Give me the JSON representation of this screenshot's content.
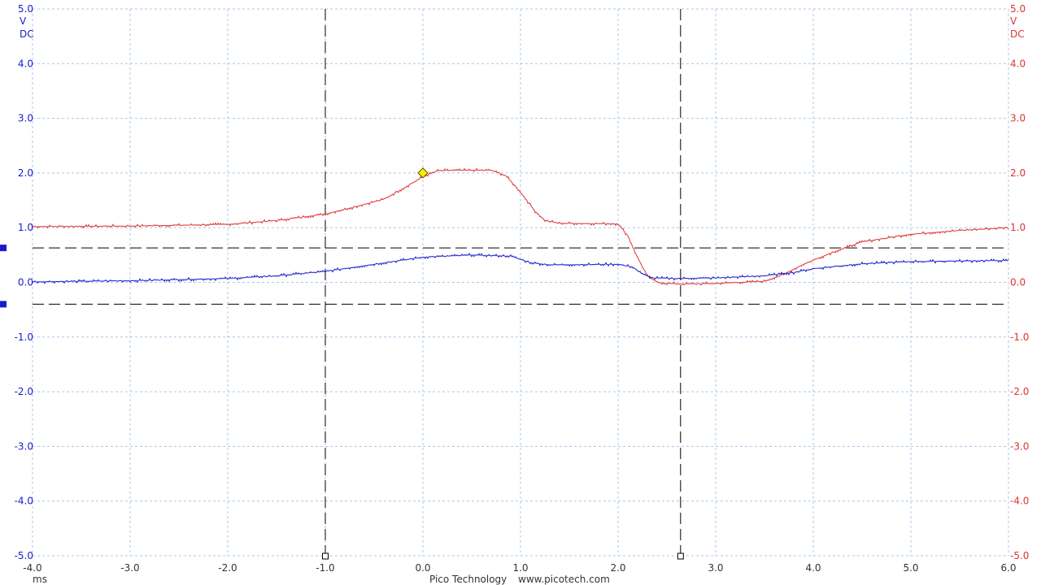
{
  "chart_data": {
    "type": "line",
    "x_unit": "ms",
    "xlim": [
      -4.0,
      6.0
    ],
    "ylim": [
      -5.0,
      5.0
    ],
    "x_tick_labels": [
      "-4.0",
      "-3.0",
      "-2.0",
      "-1.0",
      "0.0",
      "1.0",
      "2.0",
      "3.0",
      "4.0",
      "5.0",
      "6.0"
    ],
    "y_tick_labels": [
      "5.0",
      "4.0",
      "3.0",
      "2.0",
      "1.0",
      "0.0",
      "-1.0",
      "-2.0",
      "-3.0",
      "-4.0",
      "-5.0"
    ],
    "left_axis": {
      "unit_v": "V",
      "unit_dc": "DC",
      "color": "#1a1acc"
    },
    "right_axis": {
      "unit_v": "V",
      "unit_dc": "DC",
      "color": "#dd3333"
    },
    "grid": true,
    "time_rulers_ms": [
      -1.0,
      2.64
    ],
    "signal_rulers_v": [
      0.63,
      -0.4
    ],
    "trigger": {
      "x": 0.0,
      "y": 2.0,
      "color": "#ffee00"
    },
    "footer_brand": "Pico Technology",
    "footer_url": "www.picotech.com",
    "series": [
      {
        "color": "#dd3333",
        "x": [
          -4.0,
          -3.0,
          -2.0,
          -1.5,
          -1.0,
          -0.7,
          -0.4,
          -0.2,
          0.0,
          0.15,
          0.3,
          0.7,
          0.85,
          1.0,
          1.15,
          1.25,
          1.4,
          2.0,
          2.1,
          2.2,
          2.3,
          2.4,
          2.5,
          2.7,
          3.0,
          3.5,
          3.7,
          3.9,
          4.2,
          4.5,
          5.0,
          5.5,
          6.0
        ],
        "y": [
          1.02,
          1.03,
          1.06,
          1.13,
          1.25,
          1.38,
          1.52,
          1.72,
          1.93,
          2.04,
          2.05,
          2.05,
          1.95,
          1.65,
          1.3,
          1.13,
          1.08,
          1.07,
          0.85,
          0.45,
          0.12,
          0.0,
          -0.02,
          -0.03,
          -0.02,
          0.02,
          0.15,
          0.33,
          0.55,
          0.74,
          0.88,
          0.95,
          1.0
        ]
      },
      {
        "color": "#1a1acc",
        "x": [
          -4.0,
          -3.0,
          -2.0,
          -1.5,
          -1.0,
          -0.5,
          0.0,
          0.5,
          0.9,
          1.1,
          1.3,
          2.0,
          2.15,
          2.25,
          2.35,
          2.6,
          3.0,
          3.5,
          3.8,
          4.0,
          4.5,
          5.0,
          5.5,
          6.0
        ],
        "y": [
          0.01,
          0.03,
          0.07,
          0.12,
          0.2,
          0.33,
          0.46,
          0.5,
          0.48,
          0.36,
          0.32,
          0.33,
          0.28,
          0.15,
          0.08,
          0.07,
          0.08,
          0.12,
          0.18,
          0.25,
          0.34,
          0.38,
          0.39,
          0.4
        ]
      }
    ]
  }
}
